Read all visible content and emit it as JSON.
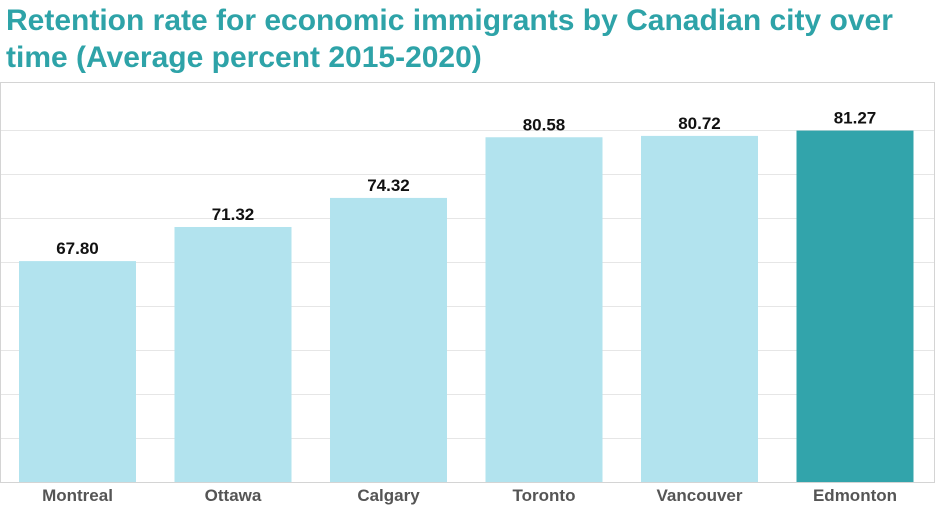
{
  "chart_data": {
    "type": "bar",
    "title": "Retention rate for economic immigrants by Canadian city over time (Average percent 2015-2020)",
    "xlabel": "",
    "ylabel": "",
    "categories": [
      "Montreal",
      "Ottawa",
      "Calgary",
      "Toronto",
      "Vancouver",
      "Edmonton"
    ],
    "values": [
      67.8,
      71.32,
      74.32,
      80.58,
      80.72,
      81.27
    ],
    "value_labels": [
      "67.80",
      "71.32",
      "74.32",
      "80.58",
      "80.72",
      "81.27"
    ],
    "ylim": [
      45,
      90
    ],
    "grid": true,
    "highlight_category": "Edmonton",
    "colors": {
      "title": "#2ea3a8",
      "bar": "#b2e3ee",
      "highlight_bar": "#32a4ab",
      "gridline": "#e6e6e6",
      "frame": "#d4d4d4"
    }
  }
}
